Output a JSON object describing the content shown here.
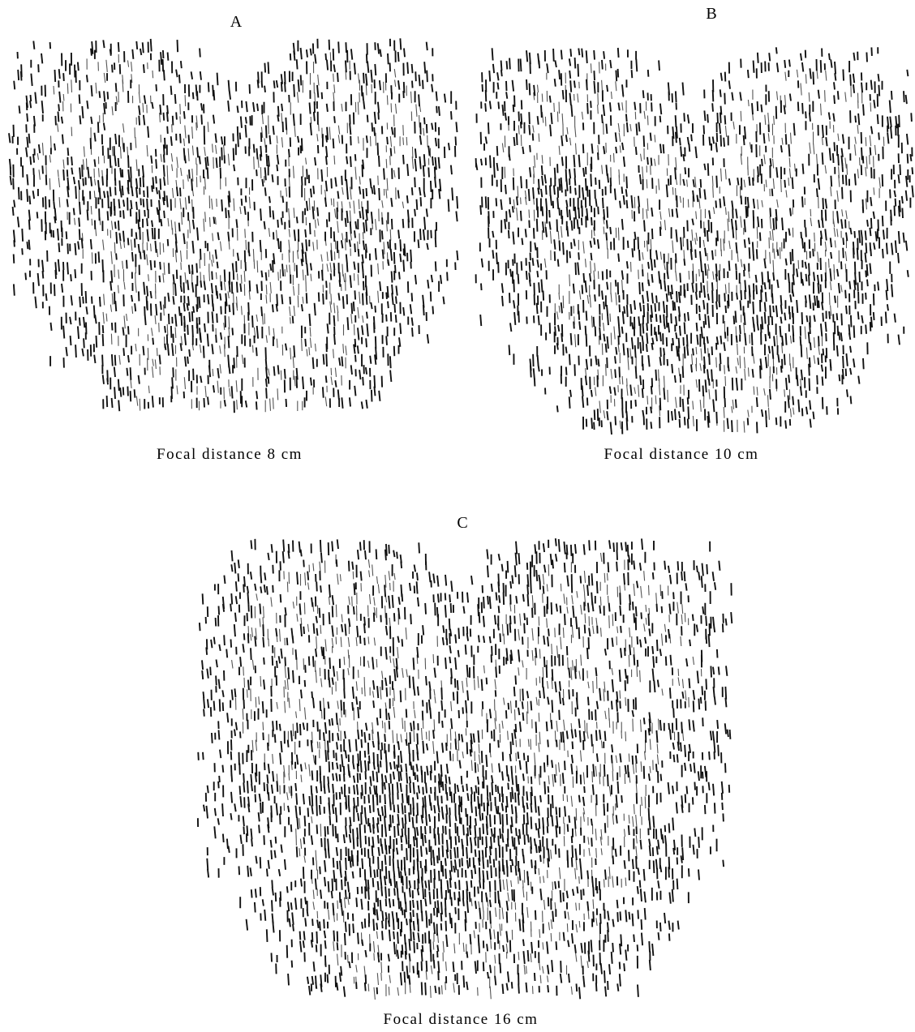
{
  "panels": [
    {
      "label": "A",
      "caption": "Focal distance 8 cm"
    },
    {
      "label": "B",
      "caption": "Focal distance 10 cm"
    },
    {
      "label": "C",
      "caption": "Focal distance 16 cm"
    }
  ]
}
